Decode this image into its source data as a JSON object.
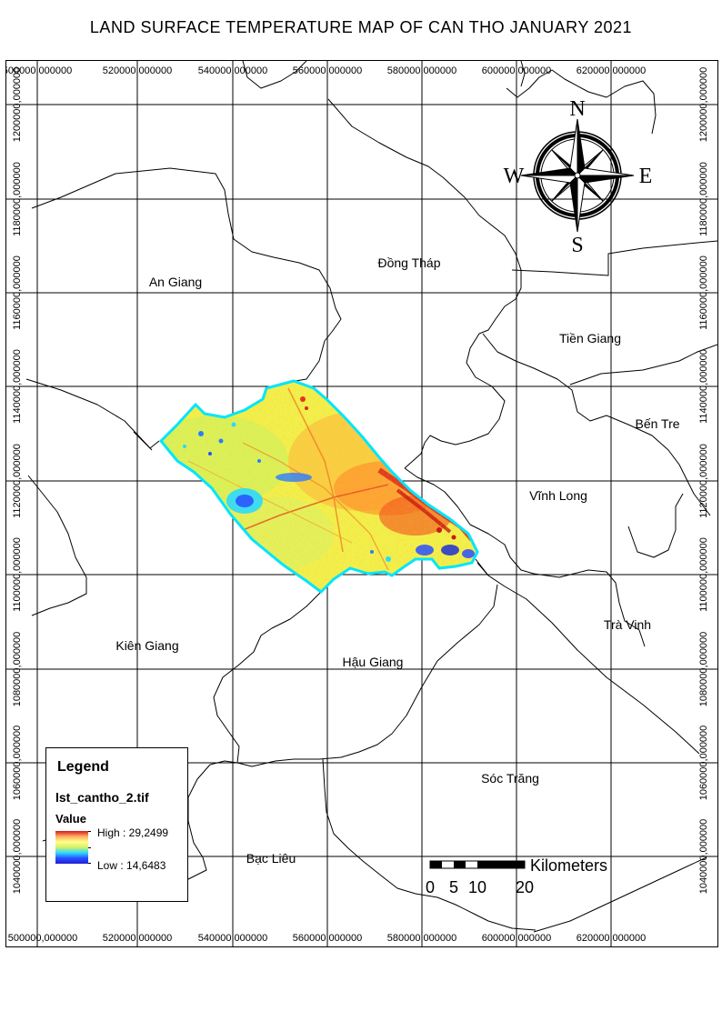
{
  "title": "LAND SURFACE TEMPERATURE MAP OF CAN THO JANUARY  2021",
  "grid": {
    "x_labels_top": [
      "500000,000000",
      "520000,000000",
      "540000,000000",
      "560000,000000",
      "580000,000000",
      "600000,000000",
      "620000,000000"
    ],
    "x_labels_bottom": [
      "500000,000000",
      "520000,000000",
      "540000,000000",
      "560000,000000",
      "580000,000000",
      "600000,000000",
      "620000,000000"
    ],
    "y_labels": [
      "1200000,000000",
      "1180000,000000",
      "1160000,000000",
      "1140000,000000",
      "1120000,000000",
      "1100000,000000",
      "1080000,000000",
      "1060000,000000",
      "1040000,000000"
    ]
  },
  "provinces": [
    "An Giang",
    "Đồng Tháp",
    "Tiền Giang",
    "Bến Tre",
    "Vĩnh Long",
    "Trà Vinh",
    "Kiên Giang",
    "Hậu Giang",
    "Sóc Trăng",
    "Bạc Liêu"
  ],
  "compass": {
    "n": "N",
    "s": "S",
    "e": "E",
    "w": "W",
    "icon": "compass-rose-icon"
  },
  "scale_bar": {
    "unit": "Kilometers",
    "ticks": [
      "0",
      "5",
      "10",
      "20"
    ]
  },
  "legend": {
    "title": "Legend",
    "layer": "lst_cantho_2.tif",
    "field": "Value",
    "high": "High : 29,2499",
    "low": "Low : 14,6483",
    "ramp_colors": [
      "#d7191c",
      "#fdae61",
      "#ffff8c",
      "#d4f06a",
      "#2bd9ff",
      "#2b4fff",
      "#1f1fd6"
    ]
  },
  "colors": {
    "boundary": "#00e5ff",
    "fill": "#f5f04a",
    "hot": "#e8321c",
    "cold": "#2a4dff"
  }
}
